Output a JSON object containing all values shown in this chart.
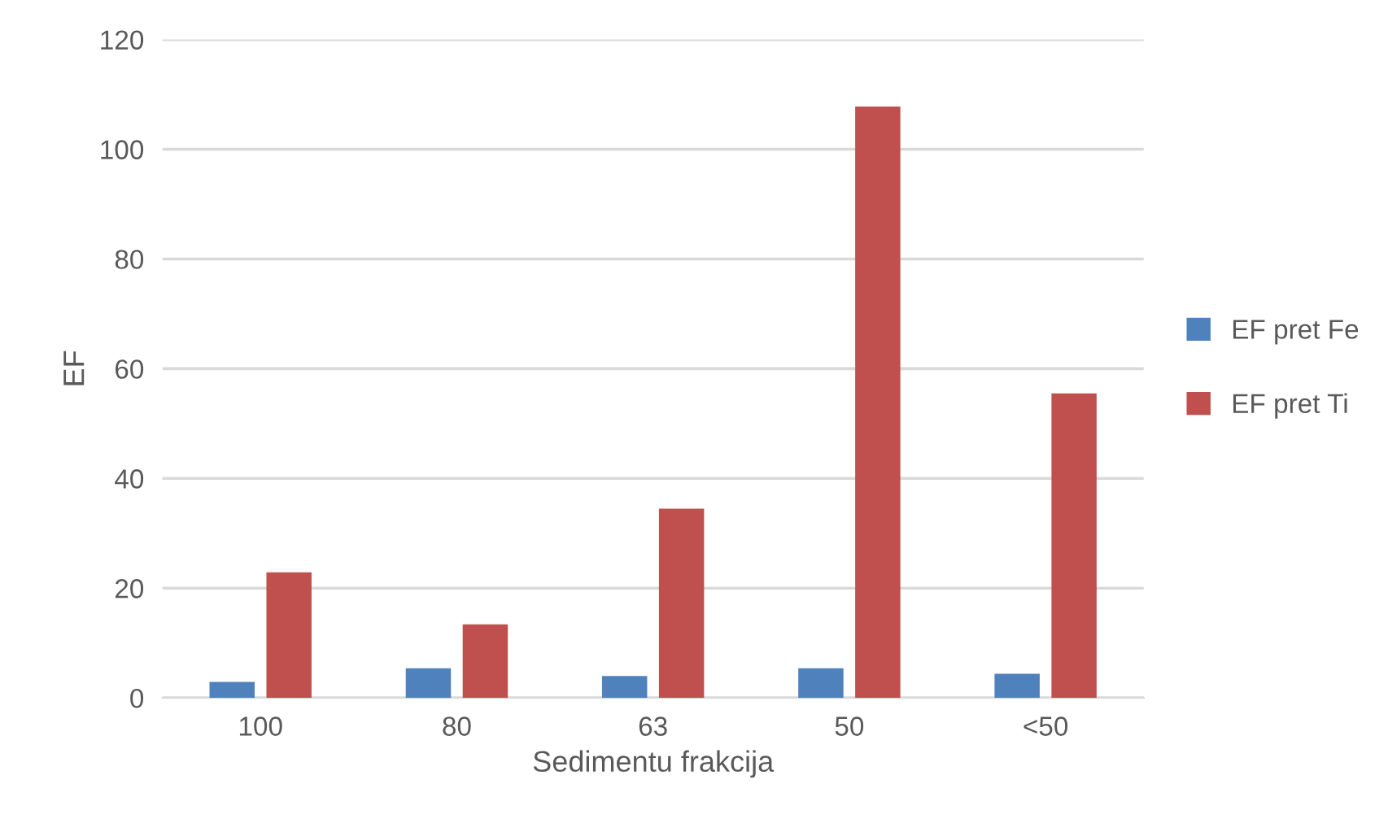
{
  "chart_data": {
    "type": "bar",
    "xlabel": "Sedimentu frakcija",
    "ylabel": "EF",
    "categories": [
      "100",
      "80",
      "63",
      "50",
      "<50"
    ],
    "series": [
      {
        "name": "EF pret Fe",
        "color": "#4f81bd",
        "values": [
          2.9,
          5.4,
          4.0,
          5.4,
          4.4
        ]
      },
      {
        "name": "EF pret Ti",
        "color": "#c0504d",
        "values": [
          22.9,
          13.4,
          34.5,
          107.8,
          55.5
        ]
      }
    ],
    "ylim": [
      0,
      120
    ],
    "yticks": [
      0,
      20,
      40,
      60,
      80,
      100,
      120
    ],
    "grid": "y",
    "legend": "right"
  }
}
